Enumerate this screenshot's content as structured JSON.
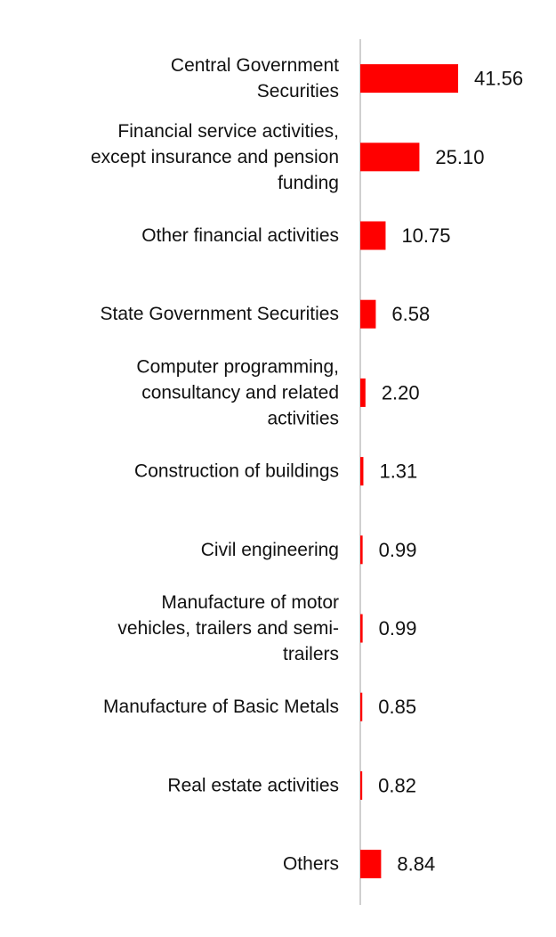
{
  "chart_data": {
    "type": "bar",
    "orientation": "horizontal",
    "categories": [
      "Central Government Securities",
      "Financial service activities, except insurance and pension funding",
      "Other financial activities",
      "State Government Securities",
      "Computer programming, consultancy and related activities",
      "Construction of buildings",
      "Civil engineering",
      "Manufacture of motor vehicles, trailers and semi-trailers",
      "Manufacture of Basic Metals",
      "Real estate activities",
      "Others"
    ],
    "category_lines": [
      [
        "Central Government",
        "Securities"
      ],
      [
        "Financial service activities,",
        "except insurance and pension",
        "funding"
      ],
      [
        "Other financial activities"
      ],
      [
        "State Government Securities"
      ],
      [
        "Computer programming,",
        "consultancy and related",
        "activities"
      ],
      [
        "Construction of buildings"
      ],
      [
        "Civil engineering"
      ],
      [
        "Manufacture of motor",
        "vehicles, trailers and semi-",
        "trailers"
      ],
      [
        "Manufacture of Basic Metals"
      ],
      [
        "Real estate activities"
      ],
      [
        "Others"
      ]
    ],
    "values": [
      41.56,
      25.1,
      10.75,
      6.58,
      2.2,
      1.31,
      0.99,
      0.99,
      0.85,
      0.82,
      8.84
    ],
    "value_labels": [
      "41.56",
      "25.10",
      "10.75",
      "6.58",
      "2.20",
      "1.31",
      "0.99",
      "0.99",
      "0.85",
      "0.82",
      "8.84"
    ],
    "xlim": [
      0,
      41.56
    ],
    "grid": false,
    "legend": "none",
    "colors": {
      "bar": "#ff0000",
      "axis": "#d0d0d0",
      "text": "#111111"
    }
  }
}
